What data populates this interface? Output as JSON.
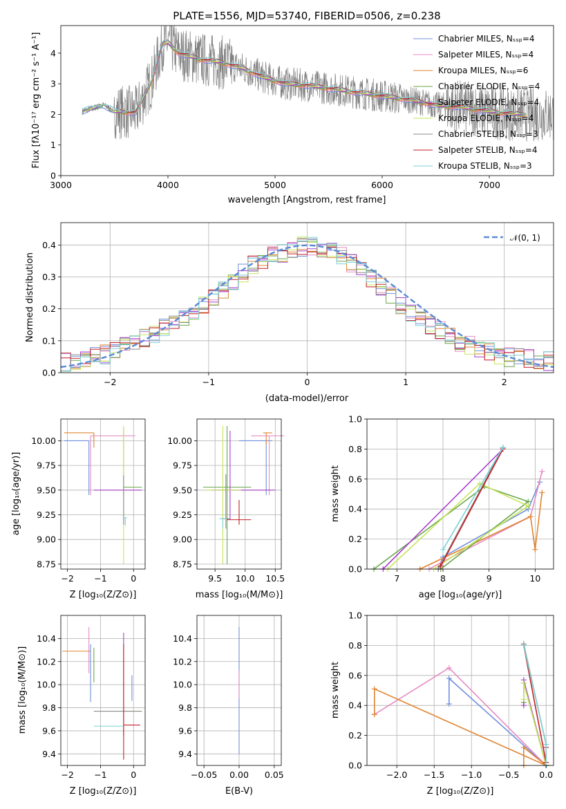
{
  "figure_title": "PLATE=1556, MJD=53740, FIBERID=0506, z=0.238",
  "series_colors": [
    "#6f8fdc",
    "#e68bc4",
    "#e0832e",
    "#6aa64a",
    "#a63fc9",
    "#c7e45a",
    "#8a8a8a",
    "#c01f23",
    "#7dd0d6"
  ],
  "chart_data": [
    {
      "id": "spectrum",
      "type": "line",
      "title": "PLATE=1556, MJD=53740, FIBERID=0506, z=0.238",
      "xlabel": "wavelength [Angstrom, rest frame]",
      "ylabel": "Flux [fλ10⁻¹⁷ erg cm⁻² s⁻¹ A⁻¹]",
      "xlim": [
        3000,
        7600
      ],
      "ylim": [
        0,
        4.9
      ],
      "xticks": [
        3000,
        4000,
        5000,
        6000,
        7000
      ],
      "yticks": [
        0,
        1,
        2,
        3,
        4
      ],
      "grid": false,
      "legend_position": "top-right",
      "legend": [
        "Chabrier MILES, N_SSP=4",
        "Salpeter MILES, N_SSP=4",
        "Kroupa MILES, N_SSP=6",
        "Chabrier ELODIE, N_SSP=4",
        "Salpeter ELODIE, N_SSP=4",
        "Kroupa ELODIE, N_SSP=4",
        "Chabrier STELIB, N_SSP=3",
        "Salpeter STELIB, N_SSP=4",
        "Kroupa STELIB, N_SSP=3"
      ],
      "data_color": "#808080",
      "continuum": {
        "x": [
          3200,
          3400,
          3500,
          3700,
          3850,
          3950,
          4000,
          4100,
          4300,
          4500,
          4700,
          4900,
          5100,
          5300,
          5500,
          5700,
          5900,
          6100,
          6300,
          6500,
          6700,
          6900,
          7100,
          7300
        ],
        "y": [
          2.1,
          2.3,
          2.1,
          2.05,
          3.1,
          4.3,
          4.35,
          4.0,
          3.8,
          3.7,
          3.5,
          3.2,
          3.0,
          2.95,
          2.85,
          2.75,
          2.65,
          2.55,
          2.45,
          2.3,
          2.25,
          2.15,
          2.05,
          2.0
        ]
      }
    },
    {
      "id": "residuals",
      "type": "line",
      "xlabel": "(data-model)/error",
      "ylabel": "Normed distribution",
      "xlim": [
        -2.5,
        2.5
      ],
      "ylim": [
        0,
        0.47
      ],
      "xticks": [
        -2,
        -1,
        0,
        1,
        2
      ],
      "yticks": [
        0.0,
        0.1,
        0.2,
        0.3,
        0.4
      ],
      "grid": true,
      "legend_position": "top-right",
      "legend": [
        "𝒩(0, 1)"
      ],
      "bin_width": 0.1,
      "hist_base": {
        "x": [
          -2.5,
          -2.0,
          -1.5,
          -1.0,
          -0.5,
          0.0,
          0.3,
          0.6,
          1.0,
          1.5,
          2.0,
          2.5
        ],
        "y": [
          0.03,
          0.06,
          0.13,
          0.22,
          0.35,
          0.4,
          0.38,
          0.31,
          0.2,
          0.1,
          0.05,
          0.035
        ]
      }
    },
    {
      "id": "age-vs-Z",
      "type": "scatter",
      "xlabel": "Z [log₁₀(Z/Z⊙)]",
      "ylabel": "age  [log₁₀(age/yr)]",
      "xlim": [
        -2.2,
        0.35
      ],
      "ylim": [
        8.7,
        10.22
      ],
      "xticks": [
        -2,
        -1,
        0
      ],
      "yticks": [
        8.75,
        9.0,
        9.25,
        9.5,
        9.75,
        10.0
      ],
      "grid": true,
      "errorbars": [
        {
          "x": -1.35,
          "xerr": [
            0.75,
            0.0
          ],
          "y": 10.0,
          "yerr": [
            0.55,
            0.0
          ]
        },
        {
          "x": -1.3,
          "xerr": [
            0.0,
            1.35
          ],
          "y": 10.05,
          "yerr": [
            0.6,
            0.0
          ]
        },
        {
          "x": -1.2,
          "xerr": [
            0.9,
            0.0
          ],
          "y": 10.08,
          "yerr": [
            0.15,
            0.0
          ]
        },
        {
          "x": -0.3,
          "xerr": [
            0.0,
            0.55
          ],
          "y": 9.53,
          "yerr": [
            0.1,
            0.6
          ]
        },
        {
          "x": -1.2,
          "xerr": [
            0.0,
            1.45
          ],
          "y": 9.5,
          "yerr": [
            0.0,
            0.0
          ]
        },
        {
          "x": -0.3,
          "xerr": [
            0.0,
            0.0
          ],
          "y": 9.5,
          "yerr": [
            0.75,
            0.65
          ]
        },
        {
          "x": -0.3,
          "xerr": [
            0.0,
            0.0
          ],
          "y": 9.2,
          "yerr": [
            0.05,
            0.45
          ]
        },
        {
          "x": -0.3,
          "xerr": [
            0.0,
            0.0
          ],
          "y": 9.21,
          "yerr": [
            0.0,
            0.0
          ]
        },
        {
          "x": -0.25,
          "xerr": [
            0.05,
            0.05
          ],
          "y": 9.22,
          "yerr": [
            0.08,
            0.0
          ]
        }
      ]
    },
    {
      "id": "age-vs-mass",
      "type": "scatter",
      "xlabel": "mass [log₁₀(M/M⊙)]",
      "ylabel": "",
      "xlim": [
        9.2,
        10.6
      ],
      "ylim": [
        8.7,
        10.22
      ],
      "xticks": [
        9.5,
        10.0,
        10.5
      ],
      "yticks": [
        8.75,
        9.0,
        9.25,
        9.5,
        9.75,
        10.0
      ],
      "grid": true,
      "errorbars": [
        {
          "x": 10.35,
          "xerr": [
            0.45,
            0.1
          ],
          "y": 10.0,
          "yerr": [
            0.55,
            0.0
          ]
        },
        {
          "x": 10.4,
          "xerr": [
            0.3,
            0.25
          ],
          "y": 10.05,
          "yerr": [
            0.6,
            0.0
          ]
        },
        {
          "x": 10.35,
          "xerr": [
            0.05,
            0.1
          ],
          "y": 10.08,
          "yerr": [
            0.12,
            0.0
          ]
        },
        {
          "x": 9.7,
          "xerr": [
            0.4,
            0.4
          ],
          "y": 9.53,
          "yerr": [
            0.78,
            0.62
          ]
        },
        {
          "x": 9.75,
          "xerr": [
            0.3,
            0.75
          ],
          "y": 9.5,
          "yerr": [
            0.3,
            0.6
          ]
        },
        {
          "x": 9.63,
          "xerr": [
            0.3,
            0.3
          ],
          "y": 9.5,
          "yerr": [
            0.75,
            0.65
          ]
        },
        {
          "x": 9.68,
          "xerr": [
            0.07,
            0.07
          ],
          "y": 9.21,
          "yerr": [
            0.1,
            0.45
          ]
        },
        {
          "x": 9.9,
          "xerr": [
            0.2,
            0.2
          ],
          "y": 9.2,
          "yerr": [
            0.05,
            0.2
          ]
        },
        {
          "x": 9.63,
          "xerr": [
            0.06,
            0.06
          ],
          "y": 9.21,
          "yerr": [
            0.1,
            0.0
          ]
        }
      ]
    },
    {
      "id": "weight-vs-age",
      "type": "line",
      "xlabel": "age  [log₁₀(age/yr)]",
      "ylabel": "mass weight",
      "xlim": [
        6.35,
        10.4
      ],
      "ylim": [
        0,
        1.0
      ],
      "xticks": [
        7,
        8,
        9,
        10
      ],
      "yticks": [
        0.0,
        0.2,
        0.4,
        0.6,
        0.8,
        1.0
      ],
      "grid": true,
      "series": [
        {
          "x": [
            7.9,
            8.0,
            9.85,
            10.1
          ],
          "y": [
            0.0,
            0.08,
            0.4,
            0.58
          ]
        },
        {
          "x": [
            7.7,
            8.0,
            9.9,
            10.15
          ],
          "y": [
            0.0,
            0.05,
            0.35,
            0.65
          ]
        },
        {
          "x": [
            7.5,
            9.9,
            10.0,
            10.15
          ],
          "y": [
            0.0,
            0.35,
            0.13,
            0.51
          ]
        },
        {
          "x": [
            6.5,
            8.9,
            9.85,
            7.95
          ],
          "y": [
            0.0,
            0.55,
            0.45,
            0.0
          ]
        },
        {
          "x": [
            6.7,
            9.3,
            7.9
          ],
          "y": [
            0.0,
            0.8,
            0.0
          ]
        },
        {
          "x": [
            6.8,
            8.8,
            9.85,
            7.8
          ],
          "y": [
            0.0,
            0.57,
            0.42,
            0.0
          ]
        },
        {
          "x": [
            7.9,
            9.3
          ],
          "y": [
            0.0,
            0.81
          ]
        },
        {
          "x": [
            7.95,
            9.3
          ],
          "y": [
            0.02,
            0.8
          ]
        },
        {
          "x": [
            8.0,
            9.3
          ],
          "y": [
            0.13,
            0.81
          ]
        }
      ]
    },
    {
      "id": "mass-vs-Z",
      "type": "scatter",
      "xlabel": "Z [log₁₀(Z/Z⊙)]",
      "ylabel": "mass [log₁₀(M/M⊙)]",
      "xlim": [
        -2.2,
        0.35
      ],
      "ylim": [
        9.3,
        10.6
      ],
      "xticks": [
        -2,
        -1,
        0
      ],
      "yticks": [
        9.4,
        9.6,
        9.8,
        10.0,
        10.2,
        10.4
      ],
      "grid": true,
      "errorbars": [
        {
          "x": -1.3,
          "xerr": [
            0.0,
            0.0
          ],
          "y": 10.2,
          "yerr": [
            0.35,
            0.15
          ]
        },
        {
          "x": -1.35,
          "xerr": [
            0.0,
            0.0
          ],
          "y": 10.3,
          "yerr": [
            0.2,
            0.2
          ]
        },
        {
          "x": -1.3,
          "xerr": [
            0.85,
            0.0
          ],
          "y": 10.29,
          "yerr": [
            0.0,
            0.0
          ]
        },
        {
          "x": -1.2,
          "xerr": [
            0.0,
            0.0
          ],
          "y": 10.17,
          "yerr": [
            0.15,
            0.15
          ]
        },
        {
          "x": -0.3,
          "xerr": [
            0.0,
            0.0
          ],
          "y": 10.0,
          "yerr": [
            0.45,
            0.45
          ]
        },
        {
          "x": -0.3,
          "xerr": [
            0.0,
            0.55
          ],
          "y": 9.77,
          "yerr": [
            0.0,
            0.0
          ]
        },
        {
          "x": -1.2,
          "xerr": [
            0.0,
            1.45
          ],
          "y": 9.77,
          "yerr": [
            0.0,
            0.0
          ]
        },
        {
          "x": -0.3,
          "xerr": [
            0.0,
            0.5
          ],
          "y": 9.65,
          "yerr": [
            0.3,
            0.7
          ]
        },
        {
          "x": -0.6,
          "xerr": [
            0.6,
            0.3
          ],
          "y": 9.64,
          "yerr": [
            0.0,
            0.0
          ]
        },
        {
          "x": -0.05,
          "xerr": [
            0.0,
            0.0
          ],
          "y": 9.86,
          "yerr": [
            0.0,
            0.22
          ]
        }
      ]
    },
    {
      "id": "mass-vs-ebv",
      "type": "scatter",
      "xlabel": "E(B-V)",
      "ylabel": "",
      "xlim": [
        -0.06,
        0.06
      ],
      "ylim": [
        9.3,
        10.6
      ],
      "xticks": [
        -0.05,
        0.0,
        0.05
      ],
      "yticks": [
        9.4,
        9.6,
        9.8,
        10.0,
        10.2,
        10.4
      ],
      "grid": true,
      "errorbars": [
        {
          "x": 0.0,
          "xerr": [
            0.0,
            0.0
          ],
          "y": 10.0,
          "yerr": [
            0.6,
            0.5
          ]
        },
        {
          "x": 0.0,
          "xerr": [
            0.0,
            0.0
          ],
          "y": 10.0,
          "yerr": [
            0.12,
            0.12
          ]
        }
      ]
    },
    {
      "id": "weight-vs-Z",
      "type": "line",
      "xlabel": "Z [log₁₀(Z/Z⊙)]",
      "ylabel": "mass weight",
      "xlim": [
        -2.4,
        0.1
      ],
      "ylim": [
        0,
        1.0
      ],
      "xticks": [
        -2.0,
        -1.5,
        -1.0,
        -0.5,
        0.0
      ],
      "yticks": [
        0.0,
        0.2,
        0.4,
        0.6,
        0.8,
        1.0
      ],
      "grid": true,
      "series": [
        {
          "x": [
            -1.3,
            -1.3,
            0.0
          ],
          "y": [
            0.41,
            0.58,
            0.0
          ]
        },
        {
          "x": [
            -2.3,
            -1.3,
            0.0
          ],
          "y": [
            0.34,
            0.65,
            0.0
          ]
        },
        {
          "x": [
            -2.3,
            -2.3,
            0.0,
            -0.3,
            -0.3
          ],
          "y": [
            0.34,
            0.51,
            0.0,
            0.12,
            0.0
          ]
        },
        {
          "x": [
            -0.3,
            -0.3,
            0.0
          ],
          "y": [
            0.42,
            0.55,
            0.0
          ]
        },
        {
          "x": [
            -0.3,
            -0.3,
            0.0
          ],
          "y": [
            0.4,
            0.57,
            0.0
          ]
        },
        {
          "x": [
            -0.3,
            -0.3,
            0.0
          ],
          "y": [
            0.44,
            0.55,
            0.0
          ]
        },
        {
          "x": [
            -0.3,
            0.0
          ],
          "y": [
            0.81,
            0.14
          ]
        },
        {
          "x": [
            -0.3,
            0.0,
            0.0
          ],
          "y": [
            0.8,
            0.02,
            0.12
          ]
        },
        {
          "x": [
            -0.3,
            0.0,
            0.0
          ],
          "y": [
            0.8,
            0.14,
            0.0
          ]
        }
      ]
    }
  ]
}
